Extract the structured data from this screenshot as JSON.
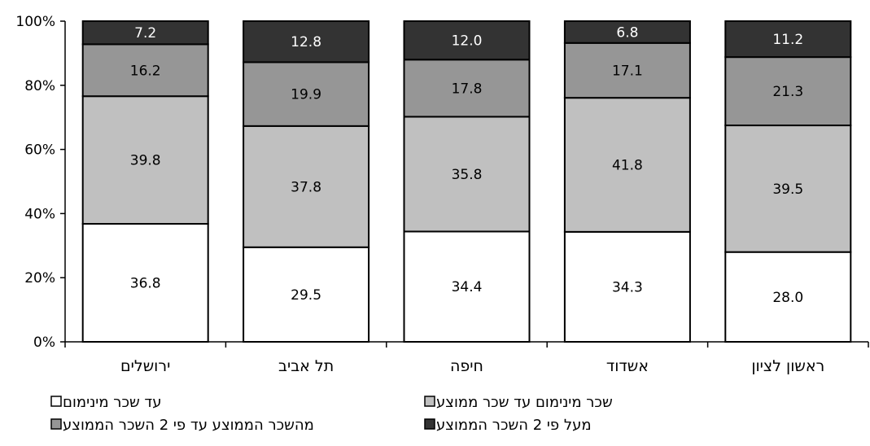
{
  "chart_data": {
    "type": "bar",
    "stacked": true,
    "percent_stacked": true,
    "categories": [
      "ירושלים",
      "תל אביב",
      "חיפה",
      "אשדוד",
      "ראשון לציון"
    ],
    "series": [
      {
        "name": "עד שכר מינימום",
        "color": "#ffffff",
        "label_color": "#000000",
        "values": [
          36.8,
          29.5,
          34.4,
          34.3,
          28.0
        ]
      },
      {
        "name": "שכר מינימום עד שכר ממוצע",
        "color": "#c0c0c0",
        "label_color": "#000000",
        "values": [
          39.8,
          37.8,
          35.8,
          41.8,
          39.5
        ]
      },
      {
        "name": "מהשכר הממוצע עד פי 2 השכר הממוצע",
        "color": "#969696",
        "label_color": "#000000",
        "values": [
          16.2,
          19.9,
          17.8,
          17.1,
          21.3
        ]
      },
      {
        "name": "מעל פי 2 השכר הממוצע",
        "color": "#333333",
        "label_color": "#ffffff",
        "values": [
          7.2,
          12.8,
          12.0,
          6.8,
          11.2
        ]
      }
    ],
    "yticks": [
      "0%",
      "20%",
      "40%",
      "60%",
      "80%",
      "100%"
    ],
    "ylim": [
      0,
      100
    ],
    "title": "",
    "xlabel": "",
    "ylabel": "",
    "grid": false,
    "legend": "bottom",
    "legend_marker": "□"
  }
}
